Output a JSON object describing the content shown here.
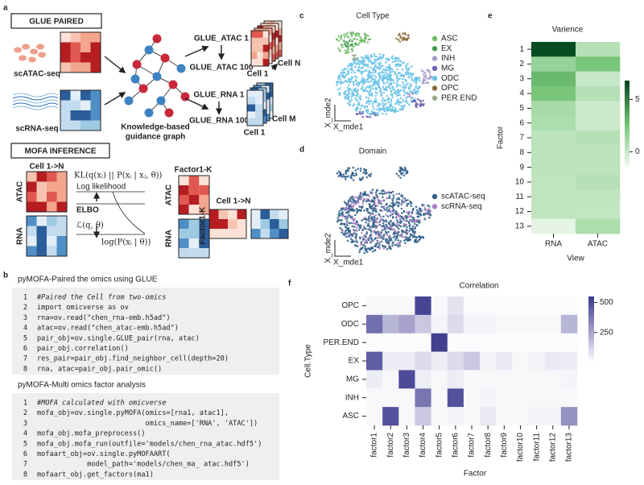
{
  "panels": {
    "a": "a",
    "b": "b",
    "c": "c",
    "d": "d",
    "e": "e",
    "f": "f"
  },
  "glue": {
    "title": "GLUE PAIRED",
    "atac_label": "scATAC-seq",
    "rna_label": "scRNA-seq",
    "graph_label_1": "Knowledge-based",
    "graph_label_2": "guidance graph",
    "atac_first": "GLUE_ATAC 1",
    "atac_last": "GLUE_ATAC 100",
    "rna_first": "GLUE_RNA 1",
    "rna_last": "GLUE_RNA 100",
    "cell_n": "Cell N",
    "cell_1a": "Cell 1",
    "cell_m": "Cell M",
    "cell_1b": "Cell 1"
  },
  "mofa": {
    "title": "MOFA INFERENCE",
    "cells_label": "Cell 1->N",
    "atac": "ATAC",
    "rna": "RNA",
    "kl": "KL(q(xᵢ) || P(xᵢ | xⱼ, θ))",
    "loglik": "Log likelihood",
    "elbo": "ELBO",
    "lq": "ℒ(q, θ)",
    "logp": "log(P(xᵢ | θ))",
    "factor_label": "Factor1-K",
    "atac2": "ATAC",
    "rna2": "RNA",
    "factor_label2": "Factor1-K",
    "cells_label2": "Cell 1->N"
  },
  "code_blocks": [
    {
      "title": "pyMOFA-Paired the omics using GLUE",
      "lines": [
        {
          "n": "1",
          "code": "#Paired the Cell from two-omics"
        },
        {
          "n": "2",
          "code": "import omicverse as ov"
        },
        {
          "n": "3",
          "code": "rna=ov.read(\"chen_rna-emb.h5ad\")"
        },
        {
          "n": "4",
          "code": "atac=ov.read(\"chen_atac-emb.h5ad\")"
        },
        {
          "n": "5",
          "code": "pair_obj=ov.single.GLUE_pair(rna, atac)"
        },
        {
          "n": "6",
          "code": "pair_obj.correlation()"
        },
        {
          "n": "7",
          "code": "res_pair=pair_obj.find_neighbor_cell(depth=20)"
        },
        {
          "n": "8",
          "code": "rna, atac=pair_obj.pair_omic()"
        }
      ]
    },
    {
      "title": "pyMOFA-Multi omics factor analysis",
      "lines": [
        {
          "n": "1",
          "code": "#MOFA calculated with omicverse"
        },
        {
          "n": "2",
          "code": "mofa_obj=ov.single.pyMOFA(omics=[rna1, atac1],"
        },
        {
          "n": "3",
          "code": "                          omics_name=['RNA', 'ATAC'])"
        },
        {
          "n": "4",
          "code": "mofa_obj.mofa_preprocess()"
        },
        {
          "n": "5",
          "code": "mofa_obj.mofa_run(outfile='models/chen_rna_atac.hdf5')"
        },
        {
          "n": "6",
          "code": "mofaart_obj=ov.single.pyMOFAART("
        },
        {
          "n": "7",
          "code": "            model_path='models/chen_ma_ atac.hdf5')"
        },
        {
          "n": "8",
          "code": "mofaart_obj.get_factors(ma1)"
        }
      ]
    }
  ],
  "embeddings": [
    {
      "title": "Cell Type",
      "xlabel": "X_mde1",
      "ylabel": "X_mde2",
      "legend": [
        {
          "name": "ASC",
          "color": "#6db965"
        },
        {
          "name": "EX",
          "color": "#3e9a4a"
        },
        {
          "name": "INH",
          "color": "#a79cc9"
        },
        {
          "name": "MG",
          "color": "#6a62b0"
        },
        {
          "name": "ODC",
          "color": "#66c2e6"
        },
        {
          "name": "OPC",
          "color": "#8b6b3a"
        },
        {
          "name": "PER.END",
          "color": "#9aa88a"
        }
      ]
    },
    {
      "title": "Domain",
      "xlabel": "X_mde1",
      "ylabel": "X_mde2",
      "legend": [
        {
          "name": "scATAC-seq",
          "color": "#2f5f8a"
        },
        {
          "name": "scRNA-seq",
          "color": "#b07fc4"
        }
      ]
    }
  ],
  "chart_data": [
    {
      "type": "heatmap",
      "title": "Varience",
      "x_categories": [
        "RNA",
        "ATAC"
      ],
      "y_categories": [
        "1",
        "2",
        "3",
        "4",
        "5",
        "6",
        "7",
        "8",
        "9",
        "10",
        "11",
        "12",
        "13"
      ],
      "values": [
        [
          6.5,
          0.5
        ],
        [
          1.5,
          2.5
        ],
        [
          3,
          0
        ],
        [
          2.5,
          0.5
        ],
        [
          1,
          -0.2
        ],
        [
          0.8,
          -0.2
        ],
        [
          0.3,
          0.5
        ],
        [
          0.3,
          0.3
        ],
        [
          0.3,
          0.3
        ],
        [
          0.2,
          0.5
        ],
        [
          0.2,
          0.2
        ],
        [
          0.2,
          0.1
        ],
        [
          -1,
          0.8
        ]
      ],
      "xlabel": "View",
      "ylabel": "Factor",
      "zlim": [
        -1.5,
        6.8
      ],
      "colorbar_ticks": [
        0,
        5
      ],
      "colormap": [
        "#f4fbf2",
        "#74c476",
        "#00441b"
      ]
    },
    {
      "type": "heatmap",
      "title": "Correlation",
      "x_categories": [
        "factor1",
        "factor2",
        "factor3",
        "factor4",
        "factor5",
        "factor6",
        "factor7",
        "factor8",
        "factor9",
        "factor10",
        "factor11",
        "factor12",
        "factor13"
      ],
      "y_categories": [
        "OPC",
        "ODC",
        "PER.END",
        "EX",
        "MG",
        "INH",
        "ASC"
      ],
      "values": [
        [
          20,
          20,
          20,
          520,
          20,
          80,
          10,
          10,
          10,
          10,
          10,
          10,
          10
        ],
        [
          400,
          200,
          250,
          150,
          30,
          100,
          30,
          30,
          20,
          20,
          20,
          20,
          200
        ],
        [
          10,
          10,
          10,
          10,
          530,
          10,
          10,
          10,
          10,
          10,
          10,
          10,
          10
        ],
        [
          450,
          50,
          50,
          100,
          50,
          100,
          150,
          30,
          60,
          20,
          30,
          60,
          50
        ],
        [
          50,
          20,
          500,
          50,
          20,
          50,
          20,
          20,
          20,
          20,
          20,
          20,
          30
        ],
        [
          20,
          20,
          20,
          380,
          20,
          480,
          20,
          30,
          20,
          20,
          20,
          20,
          20
        ],
        [
          20,
          480,
          20,
          150,
          20,
          30,
          20,
          60,
          20,
          20,
          30,
          30,
          300
        ]
      ],
      "xlabel": "Factor",
      "ylabel": "Cell.Type",
      "zlim": [
        0,
        550
      ],
      "colorbar_ticks": [
        250,
        500
      ],
      "colormap": [
        "#ffffff",
        "#9e9ac8",
        "#3b3a8c"
      ]
    }
  ]
}
